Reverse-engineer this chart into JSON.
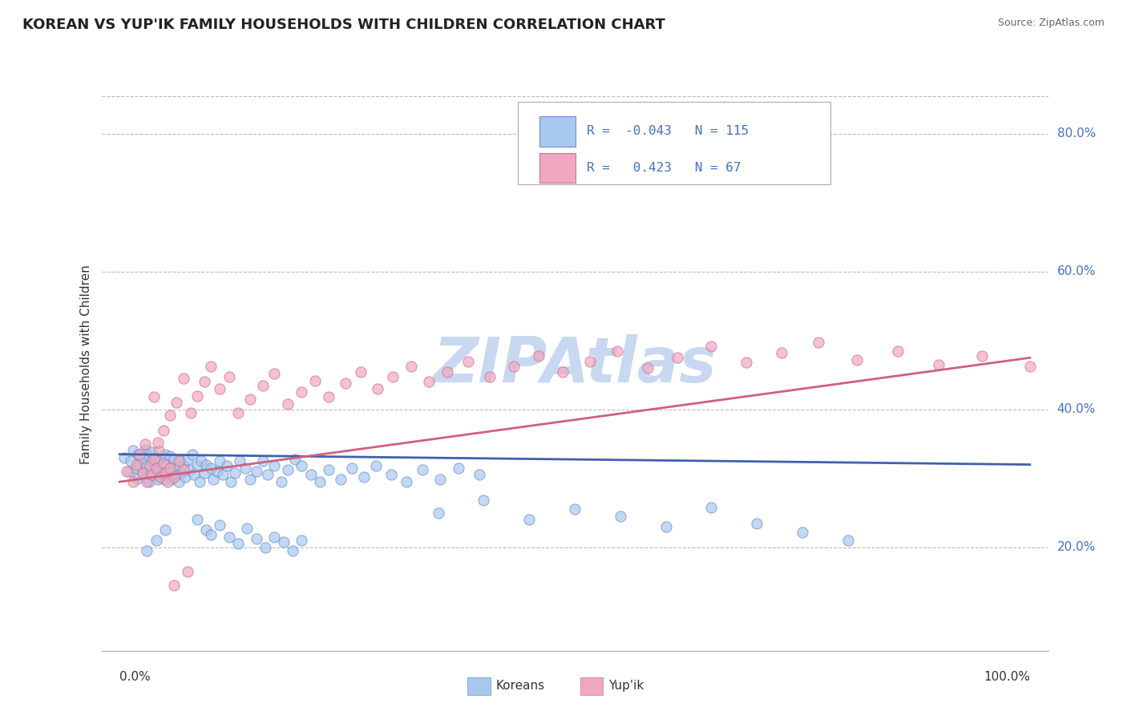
{
  "title": "KOREAN VS YUP'IK FAMILY HOUSEHOLDS WITH CHILDREN CORRELATION CHART",
  "source": "Source: ZipAtlas.com",
  "ylabel": "Family Households with Children",
  "ytick_labels": [
    "20.0%",
    "40.0%",
    "60.0%",
    "80.0%"
  ],
  "ytick_values": [
    0.2,
    0.4,
    0.6,
    0.8
  ],
  "xlim": [
    -0.02,
    1.02
  ],
  "ylim": [
    0.05,
    0.88
  ],
  "korean_R": -0.043,
  "korean_N": 115,
  "yupik_R": 0.423,
  "yupik_N": 67,
  "korean_color": "#a8c8f0",
  "yupik_color": "#f0a8c0",
  "korean_edge_color": "#7090c8",
  "yupik_edge_color": "#d07090",
  "korean_line_color": "#4060b0",
  "yupik_line_color": "#d06080",
  "legend_label_korean": "Koreans",
  "legend_label_yupik": "Yup'ik",
  "legend_text_color": "#4472c4",
  "watermark": "ZIPAtlas",
  "background_color": "#ffffff",
  "grid_color": "#bbbbbb",
  "title_fontsize": 13,
  "ytick_color": "#4472c4",
  "watermark_color": "#c8d8f0",
  "korean_line_start_y": 0.335,
  "korean_line_end_y": 0.32,
  "yupik_line_start_y": 0.295,
  "yupik_line_end_y": 0.475,
  "korean_x": [
    0.005,
    0.01,
    0.012,
    0.015,
    0.018,
    0.02,
    0.02,
    0.022,
    0.025,
    0.025,
    0.027,
    0.028,
    0.03,
    0.03,
    0.03,
    0.032,
    0.033,
    0.035,
    0.035,
    0.037,
    0.038,
    0.04,
    0.04,
    0.042,
    0.043,
    0.045,
    0.045,
    0.047,
    0.048,
    0.05,
    0.05,
    0.052,
    0.053,
    0.055,
    0.055,
    0.057,
    0.058,
    0.06,
    0.062,
    0.063,
    0.065,
    0.067,
    0.068,
    0.07,
    0.072,
    0.075,
    0.077,
    0.08,
    0.082,
    0.085,
    0.088,
    0.09,
    0.093,
    0.095,
    0.1,
    0.103,
    0.107,
    0.11,
    0.113,
    0.118,
    0.122,
    0.127,
    0.132,
    0.138,
    0.143,
    0.15,
    0.157,
    0.163,
    0.17,
    0.178,
    0.185,
    0.193,
    0.2,
    0.21,
    0.22,
    0.23,
    0.243,
    0.255,
    0.268,
    0.282,
    0.298,
    0.315,
    0.333,
    0.352,
    0.372,
    0.395,
    0.35,
    0.4,
    0.45,
    0.5,
    0.55,
    0.6,
    0.65,
    0.7,
    0.75,
    0.8,
    0.085,
    0.095,
    0.1,
    0.11,
    0.12,
    0.13,
    0.14,
    0.15,
    0.16,
    0.17,
    0.18,
    0.19,
    0.2,
    0.03,
    0.04,
    0.05
  ],
  "korean_y": [
    0.33,
    0.31,
    0.325,
    0.34,
    0.315,
    0.3,
    0.335,
    0.32,
    0.308,
    0.328,
    0.315,
    0.342,
    0.3,
    0.318,
    0.335,
    0.295,
    0.31,
    0.325,
    0.338,
    0.305,
    0.322,
    0.312,
    0.33,
    0.298,
    0.316,
    0.302,
    0.328,
    0.318,
    0.308,
    0.335,
    0.298,
    0.32,
    0.308,
    0.332,
    0.315,
    0.298,
    0.31,
    0.328,
    0.305,
    0.318,
    0.295,
    0.325,
    0.308,
    0.318,
    0.302,
    0.328,
    0.312,
    0.335,
    0.305,
    0.318,
    0.295,
    0.325,
    0.308,
    0.32,
    0.315,
    0.298,
    0.31,
    0.325,
    0.305,
    0.318,
    0.295,
    0.308,
    0.325,
    0.315,
    0.298,
    0.31,
    0.325,
    0.305,
    0.318,
    0.295,
    0.312,
    0.328,
    0.318,
    0.305,
    0.295,
    0.312,
    0.298,
    0.315,
    0.302,
    0.318,
    0.305,
    0.295,
    0.312,
    0.298,
    0.315,
    0.305,
    0.25,
    0.268,
    0.24,
    0.255,
    0.245,
    0.23,
    0.258,
    0.235,
    0.222,
    0.21,
    0.24,
    0.225,
    0.218,
    0.232,
    0.215,
    0.205,
    0.228,
    0.212,
    0.2,
    0.215,
    0.208,
    0.195,
    0.21,
    0.195,
    0.21,
    0.225
  ],
  "yupik_x": [
    0.008,
    0.015,
    0.018,
    0.022,
    0.025,
    0.028,
    0.03,
    0.033,
    0.035,
    0.038,
    0.04,
    0.043,
    0.045,
    0.048,
    0.05,
    0.053,
    0.055,
    0.06,
    0.065,
    0.07,
    0.038,
    0.042,
    0.048,
    0.055,
    0.062,
    0.07,
    0.078,
    0.085,
    0.093,
    0.1,
    0.11,
    0.12,
    0.13,
    0.143,
    0.157,
    0.17,
    0.185,
    0.2,
    0.215,
    0.23,
    0.248,
    0.265,
    0.283,
    0.3,
    0.32,
    0.34,
    0.36,
    0.383,
    0.407,
    0.433,
    0.46,
    0.487,
    0.517,
    0.547,
    0.58,
    0.613,
    0.65,
    0.688,
    0.727,
    0.768,
    0.81,
    0.855,
    0.9,
    0.947,
    1.0,
    0.06,
    0.075
  ],
  "yupik_y": [
    0.31,
    0.295,
    0.32,
    0.335,
    0.308,
    0.35,
    0.295,
    0.318,
    0.305,
    0.328,
    0.315,
    0.34,
    0.302,
    0.322,
    0.308,
    0.295,
    0.315,
    0.302,
    0.325,
    0.312,
    0.418,
    0.352,
    0.37,
    0.392,
    0.41,
    0.445,
    0.395,
    0.42,
    0.44,
    0.462,
    0.43,
    0.448,
    0.395,
    0.415,
    0.435,
    0.452,
    0.408,
    0.425,
    0.442,
    0.418,
    0.438,
    0.455,
    0.43,
    0.448,
    0.462,
    0.44,
    0.455,
    0.47,
    0.448,
    0.462,
    0.478,
    0.455,
    0.47,
    0.485,
    0.46,
    0.475,
    0.492,
    0.468,
    0.482,
    0.498,
    0.472,
    0.485,
    0.465,
    0.478,
    0.462,
    0.145,
    0.165
  ]
}
